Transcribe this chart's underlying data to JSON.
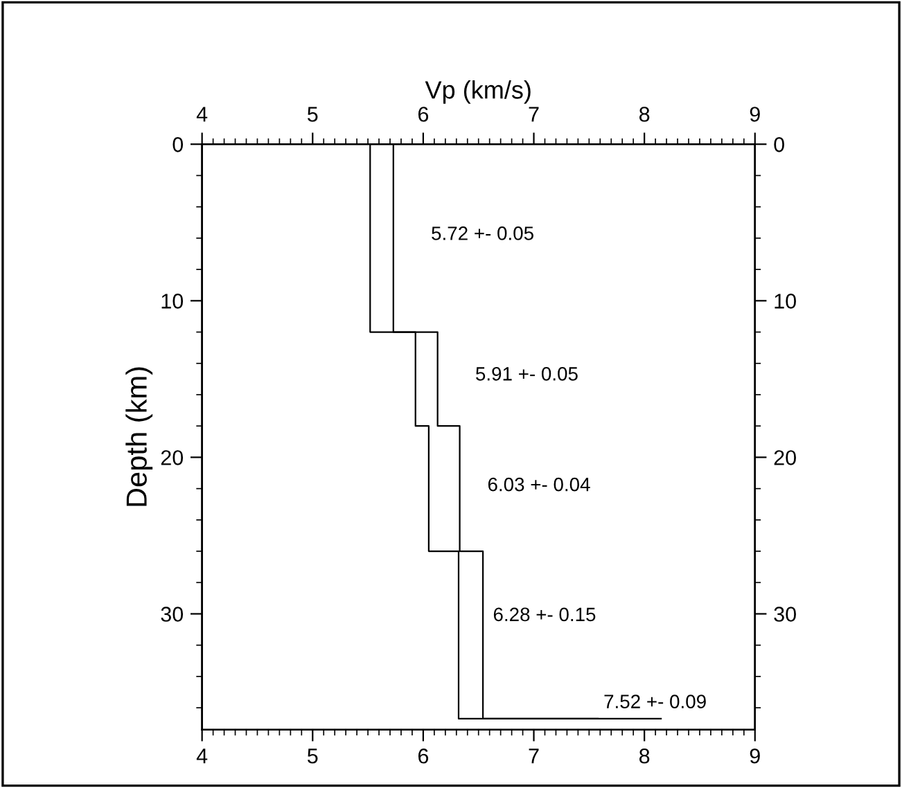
{
  "chart_data": {
    "type": "line",
    "xlabel": "Vp (km/s)",
    "ylabel": "Depth (km)",
    "xlim": [
      4,
      9
    ],
    "xticks": [
      4,
      5,
      6,
      7,
      8,
      9
    ],
    "x2lim": [
      4,
      9
    ],
    "x2ticks": [
      4,
      5,
      6,
      7,
      8,
      9
    ],
    "ylim": [
      37.4,
      0
    ],
    "yticks": [
      0,
      10,
      20,
      30
    ],
    "y2lim": [
      37.4,
      0
    ],
    "y2ticks": [
      0,
      10,
      20,
      30
    ],
    "grid": false,
    "legend": false,
    "marker": "none",
    "line_style": "solid",
    "series": [
      {
        "color": "#000000",
        "x": [
          5.52,
          5.52,
          5.93,
          5.93,
          6.05,
          6.05,
          6.32,
          6.32,
          7.58
        ],
        "values": [
          0,
          12,
          12,
          18,
          18,
          26,
          26,
          36.7,
          36.7
        ]
      },
      {
        "color": "#000000",
        "x": [
          5.73,
          5.73,
          6.13,
          6.13,
          6.33,
          6.33,
          6.54,
          6.54,
          8.15
        ],
        "values": [
          0,
          12,
          12,
          18,
          18,
          26,
          26,
          36.7,
          36.7
        ]
      }
    ],
    "annotations": [
      "5.72 +- 0.05",
      "5.91 +- 0.05",
      "6.03 +- 0.04",
      "6.28 +- 0.15",
      "7.52 +- 0.09"
    ]
  }
}
